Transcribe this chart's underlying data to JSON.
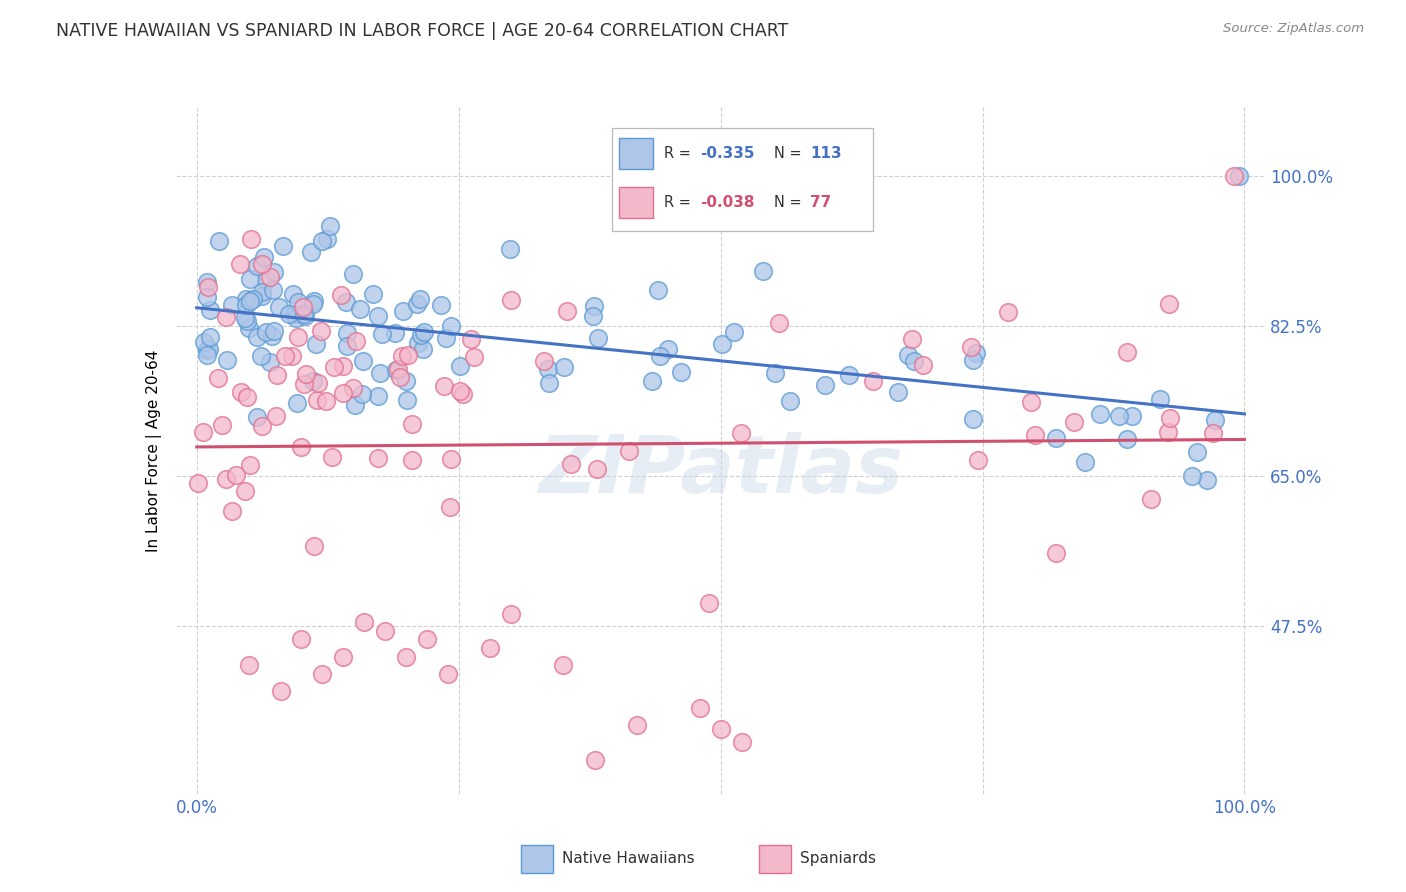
{
  "title": "NATIVE HAWAIIAN VS SPANIARD IN LABOR FORCE | AGE 20-64 CORRELATION CHART",
  "source_text": "Source: ZipAtlas.com",
  "ylabel": "In Labor Force | Age 20-64",
  "xlim": [
    -0.02,
    1.02
  ],
  "ylim": [
    0.28,
    1.08
  ],
  "y_tick_vals_right": [
    1.0,
    0.825,
    0.65,
    0.475
  ],
  "y_tick_labels_right": [
    "100.0%",
    "82.5%",
    "65.0%",
    "47.5%"
  ],
  "blue_R": "-0.335",
  "blue_N": "113",
  "pink_R": "-0.038",
  "pink_N": "77",
  "blue_color": "#aec6e8",
  "blue_edge_color": "#5b9bd5",
  "pink_color": "#f4b8cb",
  "pink_edge_color": "#e07090",
  "blue_line_color": "#4472c4",
  "pink_line_color": "#d05070",
  "watermark": "ZIPatlas",
  "grid_color": "#d0d0d0",
  "tick_color": "#4472c4",
  "title_color": "#333333",
  "source_color": "#888888"
}
